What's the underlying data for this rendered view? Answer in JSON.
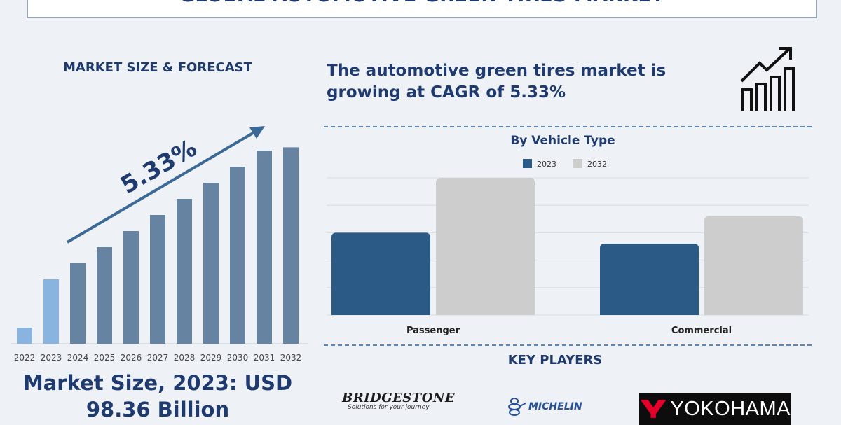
{
  "header": {
    "title": "GLOBAL AUTOMOTIVE GREEN TIRES MARKET"
  },
  "left_panel": {
    "heading": "MARKET SIZE & FORECAST",
    "cagr_label": "5.33%",
    "market_size_line1": "Market Size, 2023: USD",
    "market_size_line2": "98.36 Billion"
  },
  "right_panel": {
    "cagr_line1": "The automotive green tires market is",
    "cagr_line2": "growing at CAGR of 5.33%",
    "growth_icon": "growth-chart-icon",
    "key_players_heading": "KEY PLAYERS",
    "key_players": [
      {
        "name": "BRIDGESTONE",
        "tagline": "Solutions for your journey"
      },
      {
        "name": "MICHELIN"
      },
      {
        "name": "YOKOHAMA"
      }
    ]
  },
  "chart_data": [
    {
      "type": "bar",
      "title": "",
      "categories": [
        "2022",
        "2023",
        "2024",
        "2025",
        "2026",
        "2027",
        "2028",
        "2029",
        "2030",
        "2031",
        "2032"
      ],
      "values": [
        10,
        40,
        50,
        60,
        70,
        80,
        90,
        100,
        110,
        120,
        122
      ],
      "highlight": {
        "2022": "#8ab4e0",
        "2023": "#8ab4e0"
      },
      "colors": {
        "bar": "#6783a2",
        "highlight": "#8ab4e0",
        "arrow": "#3c6a96"
      },
      "annotation": "5.33%"
    },
    {
      "type": "bar",
      "title": "By Vehicle Type",
      "categories": [
        "Passenger",
        "Commercial"
      ],
      "series": [
        {
          "name": "2023",
          "values": [
            30,
            26
          ],
          "color": "#2b5a87"
        },
        {
          "name": "2032",
          "values": [
            50,
            36
          ],
          "color": "#cdcdcd"
        }
      ],
      "ylim": [
        0,
        50
      ],
      "grid": true,
      "legend": "top-center"
    }
  ]
}
